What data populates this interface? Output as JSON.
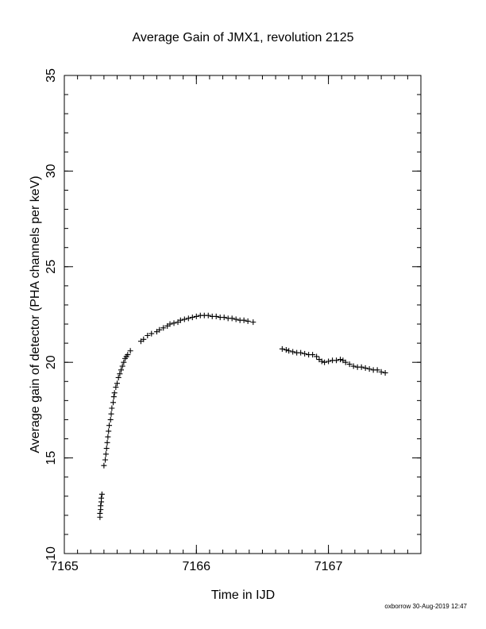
{
  "chart_data": {
    "type": "scatter",
    "title": "Average Gain of JMX1, revolution 2125",
    "xlabel": "Time in IJD",
    "ylabel": "Average gain of detector (PHA channels per keV)",
    "xlim": [
      7165,
      7167.7
    ],
    "ylim": [
      10,
      35
    ],
    "x_ticks": [
      7165,
      7166,
      7167
    ],
    "y_ticks": [
      10,
      15,
      20,
      25,
      30,
      35
    ],
    "x_tick_labels": [
      "7165",
      "7166",
      "7167"
    ],
    "y_tick_labels": [
      "10",
      "15",
      "20",
      "25",
      "30",
      "35"
    ],
    "x_minor_step": 0.1,
    "y_minor_step": 1,
    "marker": "+",
    "grid": false,
    "legend": "none",
    "series": [
      {
        "points": [
          [
            7165.27,
            11.9
          ],
          [
            7165.27,
            12.1
          ],
          [
            7165.275,
            12.3
          ],
          [
            7165.275,
            12.5
          ],
          [
            7165.28,
            12.7
          ],
          [
            7165.28,
            12.9
          ],
          [
            7165.285,
            13.1
          ],
          [
            7165.3,
            14.6
          ],
          [
            7165.31,
            14.9
          ],
          [
            7165.315,
            15.2
          ],
          [
            7165.32,
            15.5
          ],
          [
            7165.325,
            15.8
          ],
          [
            7165.33,
            16.1
          ],
          [
            7165.335,
            16.4
          ],
          [
            7165.34,
            16.7
          ],
          [
            7165.35,
            17.0
          ],
          [
            7165.355,
            17.3
          ],
          [
            7165.36,
            17.6
          ],
          [
            7165.37,
            17.9
          ],
          [
            7165.375,
            18.2
          ],
          [
            7165.38,
            18.4
          ],
          [
            7165.39,
            18.7
          ],
          [
            7165.4,
            18.9
          ],
          [
            7165.41,
            19.2
          ],
          [
            7165.42,
            19.4
          ],
          [
            7165.43,
            19.6
          ],
          [
            7165.44,
            19.8
          ],
          [
            7165.45,
            20.0
          ],
          [
            7165.46,
            20.2
          ],
          [
            7165.47,
            20.3
          ],
          [
            7165.48,
            20.4
          ],
          [
            7165.5,
            20.6
          ],
          [
            7165.58,
            21.1
          ],
          [
            7165.6,
            21.2
          ],
          [
            7165.63,
            21.4
          ],
          [
            7165.66,
            21.5
          ],
          [
            7165.7,
            21.6
          ],
          [
            7165.72,
            21.7
          ],
          [
            7165.75,
            21.8
          ],
          [
            7165.78,
            21.9
          ],
          [
            7165.8,
            22.0
          ],
          [
            7165.83,
            22.05
          ],
          [
            7165.86,
            22.1
          ],
          [
            7165.88,
            22.2
          ],
          [
            7165.91,
            22.25
          ],
          [
            7165.94,
            22.3
          ],
          [
            7165.97,
            22.35
          ],
          [
            7166.0,
            22.4
          ],
          [
            7166.03,
            22.45
          ],
          [
            7166.06,
            22.45
          ],
          [
            7166.09,
            22.45
          ],
          [
            7166.12,
            22.4
          ],
          [
            7166.15,
            22.4
          ],
          [
            7166.18,
            22.35
          ],
          [
            7166.21,
            22.35
          ],
          [
            7166.24,
            22.3
          ],
          [
            7166.27,
            22.3
          ],
          [
            7166.3,
            22.25
          ],
          [
            7166.33,
            22.2
          ],
          [
            7166.36,
            22.2
          ],
          [
            7166.39,
            22.15
          ],
          [
            7166.43,
            22.1
          ],
          [
            7166.65,
            20.7
          ],
          [
            7166.68,
            20.65
          ],
          [
            7166.7,
            20.6
          ],
          [
            7166.73,
            20.55
          ],
          [
            7166.76,
            20.5
          ],
          [
            7166.79,
            20.5
          ],
          [
            7166.82,
            20.45
          ],
          [
            7166.85,
            20.4
          ],
          [
            7166.88,
            20.4
          ],
          [
            7166.91,
            20.3
          ],
          [
            7166.93,
            20.15
          ],
          [
            7166.95,
            20.05
          ],
          [
            7166.97,
            20.0
          ],
          [
            7167.0,
            20.05
          ],
          [
            7167.03,
            20.1
          ],
          [
            7167.06,
            20.1
          ],
          [
            7167.09,
            20.15
          ],
          [
            7167.11,
            20.1
          ],
          [
            7167.13,
            20.0
          ],
          [
            7167.16,
            19.9
          ],
          [
            7167.19,
            19.8
          ],
          [
            7167.22,
            19.75
          ],
          [
            7167.25,
            19.75
          ],
          [
            7167.28,
            19.7
          ],
          [
            7167.31,
            19.65
          ],
          [
            7167.34,
            19.6
          ],
          [
            7167.37,
            19.6
          ],
          [
            7167.4,
            19.5
          ],
          [
            7167.43,
            19.45
          ]
        ]
      }
    ]
  },
  "footer": {
    "credit": "oxborrow 30-Aug-2019 12:47"
  }
}
